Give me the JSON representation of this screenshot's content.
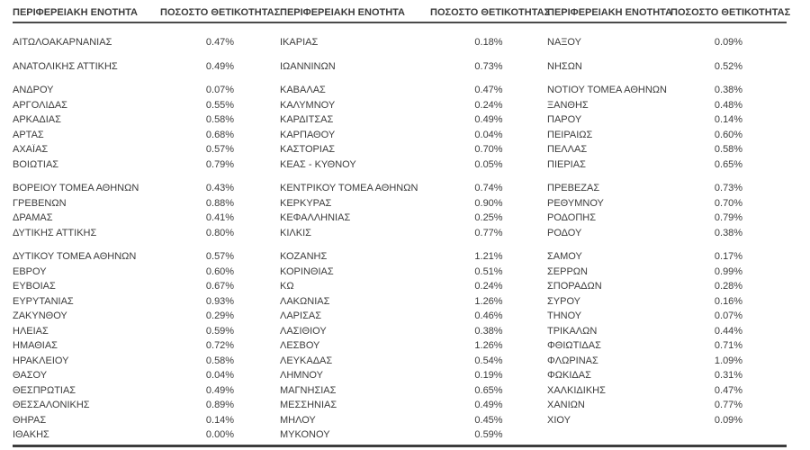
{
  "colors": {
    "background": "#ffffff",
    "text": "#3c3c3c",
    "header_underline": "#4a4a4a",
    "bottom_border": "#3d3d3d"
  },
  "table": {
    "header": {
      "region_label": "ΠΕΡΙΦΕΡΕΙΑΚΗ ΕΝΟΤΗΤΑ",
      "positivity_label": "ΠΟΣΟΣΤΟ ΘΕΤΙΚΟΤΗΤΑΣ"
    },
    "gaps_after_row": [
      0,
      1,
      7,
      11
    ],
    "rows": [
      {
        "c1": [
          "ΑΙΤΩΛΟΑΚΑΡΝΑΝΙΑΣ",
          "0.47%"
        ],
        "c2": [
          "ΙΚΑΡΙΑΣ",
          "0.18%"
        ],
        "c3": [
          "ΝΑΞΟΥ",
          "0.09%"
        ]
      },
      {
        "c1": [
          "ΑΝΑΤΟΛΙΚΗΣ ΑΤΤΙΚΗΣ",
          "0.49%"
        ],
        "c2": [
          "ΙΩΑΝΝΙΝΩΝ",
          "0.73%"
        ],
        "c3": [
          "ΝΗΣΩΝ",
          "0.52%"
        ]
      },
      {
        "c1": [
          "ΑΝΔΡΟΥ",
          "0.07%"
        ],
        "c2": [
          "ΚΑΒΑΛΑΣ",
          "0.47%"
        ],
        "c3": [
          "ΝΟΤΙΟΥ ΤΟΜΕΑ ΑΘΗΝΩΝ",
          "0.38%"
        ]
      },
      {
        "c1": [
          "ΑΡΓΟΛΙΔΑΣ",
          "0.55%"
        ],
        "c2": [
          "ΚΑΛΥΜΝΟΥ",
          "0.24%"
        ],
        "c3": [
          "ΞΑΝΘΗΣ",
          "0.48%"
        ]
      },
      {
        "c1": [
          "ΑΡΚΑΔΙΑΣ",
          "0.58%"
        ],
        "c2": [
          "ΚΑΡΔΙΤΣΑΣ",
          "0.49%"
        ],
        "c3": [
          "ΠΑΡΟΥ",
          "0.14%"
        ]
      },
      {
        "c1": [
          "ΑΡΤΑΣ",
          "0.68%"
        ],
        "c2": [
          "ΚΑΡΠΑΘΟΥ",
          "0.04%"
        ],
        "c3": [
          "ΠΕΙΡΑΙΩΣ",
          "0.60%"
        ]
      },
      {
        "c1": [
          "ΑΧΑΪΑΣ",
          "0.57%"
        ],
        "c2": [
          "ΚΑΣΤΟΡΙΑΣ",
          "0.70%"
        ],
        "c3": [
          "ΠΕΛΛΑΣ",
          "0.58%"
        ]
      },
      {
        "c1": [
          "ΒΟΙΩΤΙΑΣ",
          "0.79%"
        ],
        "c2": [
          "ΚΕΑΣ - ΚΥΘΝΟΥ",
          "0.05%"
        ],
        "c3": [
          "ΠΙΕΡΙΑΣ",
          "0.65%"
        ]
      },
      {
        "c1": [
          "ΒΟΡΕΙΟΥ ΤΟΜΕΑ ΑΘΗΝΩΝ",
          "0.43%"
        ],
        "c2": [
          "ΚΕΝΤΡΙΚΟΥ ΤΟΜΕΑ ΑΘΗΝΩΝ",
          "0.74%"
        ],
        "c3": [
          "ΠΡΕΒΕΖΑΣ",
          "0.73%"
        ]
      },
      {
        "c1": [
          "ΓΡΕΒΕΝΩΝ",
          "0.88%"
        ],
        "c2": [
          "ΚΕΡΚΥΡΑΣ",
          "0.90%"
        ],
        "c3": [
          "ΡΕΘΥΜΝΟΥ",
          "0.70%"
        ]
      },
      {
        "c1": [
          "ΔΡΑΜΑΣ",
          "0.41%"
        ],
        "c2": [
          "ΚΕΦΑΛΛΗΝΙΑΣ",
          "0.25%"
        ],
        "c3": [
          "ΡΟΔΟΠΗΣ",
          "0.79%"
        ]
      },
      {
        "c1": [
          "ΔΥΤΙΚΗΣ ΑΤΤΙΚΗΣ",
          "0.80%"
        ],
        "c2": [
          "ΚΙΛΚΙΣ",
          "0.77%"
        ],
        "c3": [
          "ΡΟΔΟΥ",
          "0.38%"
        ]
      },
      {
        "c1": [
          "ΔΥΤΙΚΟΥ ΤΟΜΕΑ ΑΘΗΝΩΝ",
          "0.57%"
        ],
        "c2": [
          "ΚΟΖΑΝΗΣ",
          "1.21%"
        ],
        "c3": [
          "ΣΑΜΟΥ",
          "0.17%"
        ]
      },
      {
        "c1": [
          "ΕΒΡΟΥ",
          "0.60%"
        ],
        "c2": [
          "ΚΟΡΙΝΘΙΑΣ",
          "0.51%"
        ],
        "c3": [
          "ΣΕΡΡΩΝ",
          "0.99%"
        ]
      },
      {
        "c1": [
          "ΕΥΒΟΙΑΣ",
          "0.67%"
        ],
        "c2": [
          "ΚΩ",
          "0.24%"
        ],
        "c3": [
          "ΣΠΟΡΑΔΩΝ",
          "0.28%"
        ]
      },
      {
        "c1": [
          "ΕΥΡΥΤΑΝΙΑΣ",
          "0.93%"
        ],
        "c2": [
          "ΛΑΚΩΝΙΑΣ",
          "1.26%"
        ],
        "c3": [
          "ΣΥΡΟΥ",
          "0.16%"
        ]
      },
      {
        "c1": [
          "ΖΑΚΥΝΘΟΥ",
          "0.29%"
        ],
        "c2": [
          "ΛΑΡΙΣΑΣ",
          "0.46%"
        ],
        "c3": [
          "ΤΗΝΟΥ",
          "0.07%"
        ]
      },
      {
        "c1": [
          "ΗΛΕΙΑΣ",
          "0.59%"
        ],
        "c2": [
          "ΛΑΣΙΘΙΟΥ",
          "0.38%"
        ],
        "c3": [
          "ΤΡΙΚΑΛΩΝ",
          "0.44%"
        ]
      },
      {
        "c1": [
          "ΗΜΑΘΙΑΣ",
          "0.72%"
        ],
        "c2": [
          "ΛΕΣΒΟΥ",
          "1.26%"
        ],
        "c3": [
          "ΦΘΙΩΤΙΔΑΣ",
          "0.71%"
        ]
      },
      {
        "c1": [
          "ΗΡΑΚΛΕΙΟΥ",
          "0.58%"
        ],
        "c2": [
          "ΛΕΥΚΑΔΑΣ",
          "0.54%"
        ],
        "c3": [
          "ΦΛΩΡΙΝΑΣ",
          "1.09%"
        ]
      },
      {
        "c1": [
          "ΘΑΣΟΥ",
          "0.04%"
        ],
        "c2": [
          "ΛΗΜΝΟΥ",
          "0.19%"
        ],
        "c3": [
          "ΦΩΚΙΔΑΣ",
          "0.31%"
        ]
      },
      {
        "c1": [
          "ΘΕΣΠΡΩΤΙΑΣ",
          "0.49%"
        ],
        "c2": [
          "ΜΑΓΝΗΣΙΑΣ",
          "0.65%"
        ],
        "c3": [
          "ΧΑΛΚΙΔΙΚΗΣ",
          "0.47%"
        ]
      },
      {
        "c1": [
          "ΘΕΣΣΑΛΟΝΙΚΗΣ",
          "0.89%"
        ],
        "c2": [
          "ΜΕΣΣΗΝΙΑΣ",
          "0.49%"
        ],
        "c3": [
          "ΧΑΝΙΩΝ",
          "0.77%"
        ]
      },
      {
        "c1": [
          "ΘΗΡΑΣ",
          "0.14%"
        ],
        "c2": [
          "ΜΗΛΟΥ",
          "0.45%"
        ],
        "c3": [
          "ΧΙΟΥ",
          "0.09%"
        ]
      },
      {
        "c1": [
          "ΙΘΑΚΗΣ",
          "0.00%"
        ],
        "c2": [
          "ΜΥΚΟΝΟΥ",
          "0.59%"
        ],
        "c3": null
      }
    ]
  }
}
